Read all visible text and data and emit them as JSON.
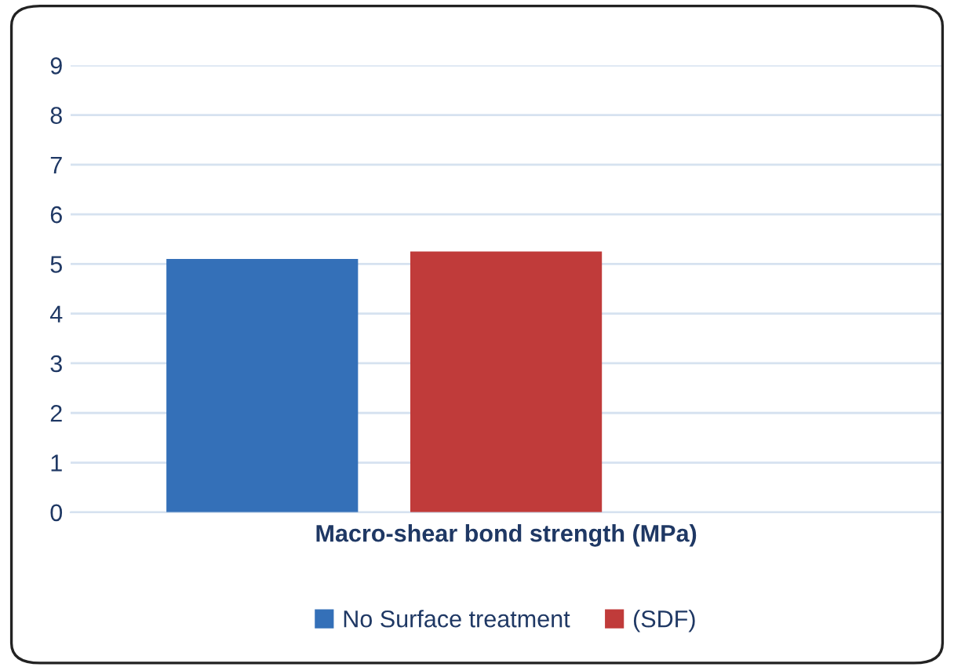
{
  "chart_data": {
    "type": "bar",
    "xlabel": "Macro-shear bond strength (MPa)",
    "categories": [
      null
    ],
    "series": [
      {
        "name": "No Surface treatment",
        "color": "#3470b8",
        "values": [
          5.1
        ]
      },
      {
        "name": "(SDF)",
        "color": "#c03b3a",
        "values": [
          5.25
        ]
      }
    ],
    "ylim": [
      0,
      9
    ],
    "yticks": [
      0,
      1,
      2,
      3,
      4,
      5,
      6,
      7,
      8,
      9
    ],
    "grid": "y",
    "legend": "bottom"
  }
}
